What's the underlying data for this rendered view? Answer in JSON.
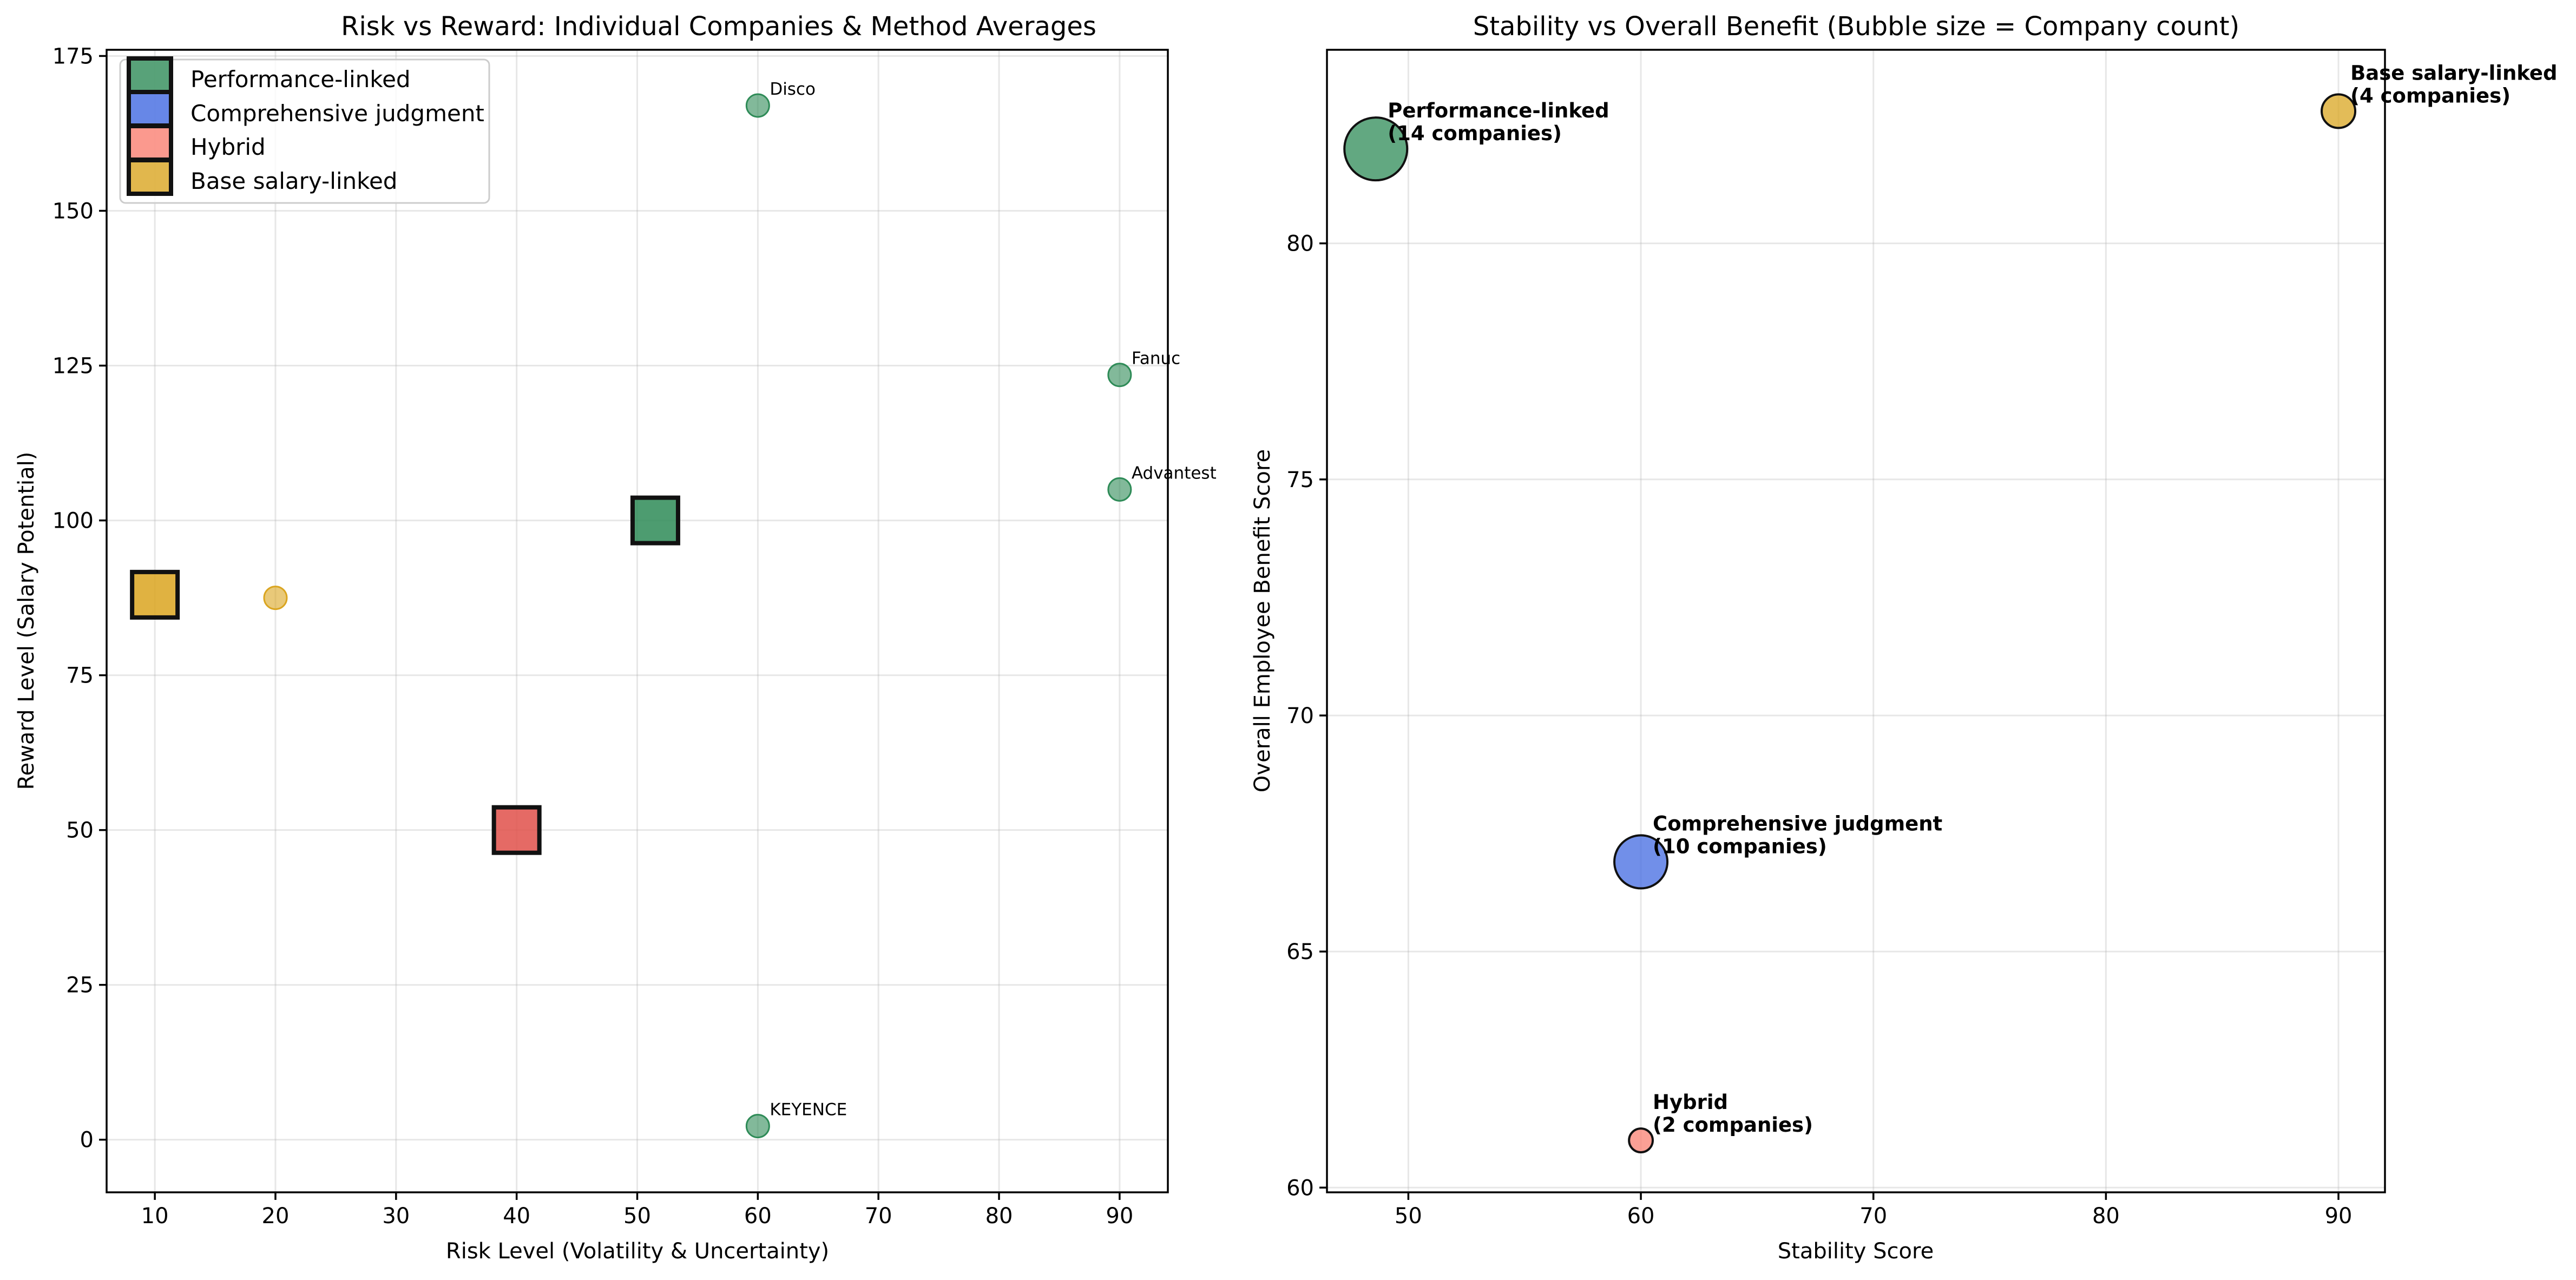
{
  "chart_data": [
    {
      "type": "scatter",
      "title": "Risk vs Reward: Individual Companies & Method Averages",
      "xlabel": "Risk Level (Volatility & Uncertainty)",
      "ylabel": "Reward Level (Salary Potential)",
      "xlim": [
        6,
        94
      ],
      "ylim": [
        -8.5,
        176
      ],
      "xticks": [
        "10",
        "20",
        "30",
        "40",
        "50",
        "60",
        "70",
        "80",
        "90"
      ],
      "yticks": [
        "0",
        "25",
        "50",
        "75",
        "100",
        "125",
        "150",
        "175"
      ],
      "grid": true,
      "legend": {
        "position": "upper-left",
        "entries": [
          {
            "name": "Performance-linked",
            "color": "#2E8B57"
          },
          {
            "name": "Comprehensive judgment",
            "color": "#4169E1"
          },
          {
            "name": "Hybrid",
            "color": "#FA8072"
          },
          {
            "name": "Base salary-linked",
            "color": "#DAA520"
          }
        ]
      },
      "companies": [
        {
          "label": "Disco",
          "x": 60,
          "y": 167,
          "color": "#2E8B57"
        },
        {
          "label": "Fanuc",
          "x": 90,
          "y": 123.5,
          "color": "#2E8B57"
        },
        {
          "label": "Advantest",
          "x": 90,
          "y": 105,
          "color": "#2E8B57"
        },
        {
          "label": "KEYENCE",
          "x": 60,
          "y": 2.2,
          "color": "#2E8B57"
        },
        {
          "label": "",
          "x": 20,
          "y": 87.5,
          "color": "#DAA520"
        }
      ],
      "method_averages": [
        {
          "name": "Performance-linked",
          "x": 51.5,
          "y": 100,
          "color": "#2E8B57"
        },
        {
          "name": "Hybrid",
          "x": 40,
          "y": 50,
          "color": "#E0504A"
        },
        {
          "name": "Base salary-linked",
          "x": 10,
          "y": 88,
          "color": "#DAA520"
        }
      ]
    },
    {
      "type": "scatter",
      "title": "Stability vs Overall Benefit (Bubble size = Company count)",
      "xlabel": "Stability Score",
      "ylabel": "Overall Employee Benefit Score",
      "xlim": [
        46.5,
        92
      ],
      "ylim": [
        59.9,
        84.1
      ],
      "xticks": [
        "50",
        "60",
        "70",
        "80",
        "90"
      ],
      "yticks": [
        "60",
        "65",
        "70",
        "75",
        "80"
      ],
      "grid": true,
      "bubbles": [
        {
          "name": "Performance-linked",
          "label_line1": "Performance-linked",
          "label_line2": "(14 companies)",
          "x": 48.6,
          "y": 82,
          "count": 14,
          "color": "#2E8B57"
        },
        {
          "name": "Comprehensive judgment",
          "label_line1": "Comprehensive judgment",
          "label_line2": "(10 companies)",
          "x": 60,
          "y": 66.9,
          "count": 10,
          "color": "#4169E1"
        },
        {
          "name": "Hybrid",
          "label_line1": "Hybrid",
          "label_line2": "(2 companies)",
          "x": 60,
          "y": 61,
          "count": 2,
          "color": "#FA8072"
        },
        {
          "name": "Base salary-linked",
          "label_line1": "Base salary-linked",
          "label_line2": "(4 companies)",
          "x": 90,
          "y": 82.8,
          "count": 4,
          "color": "#DAA520"
        }
      ]
    }
  ]
}
